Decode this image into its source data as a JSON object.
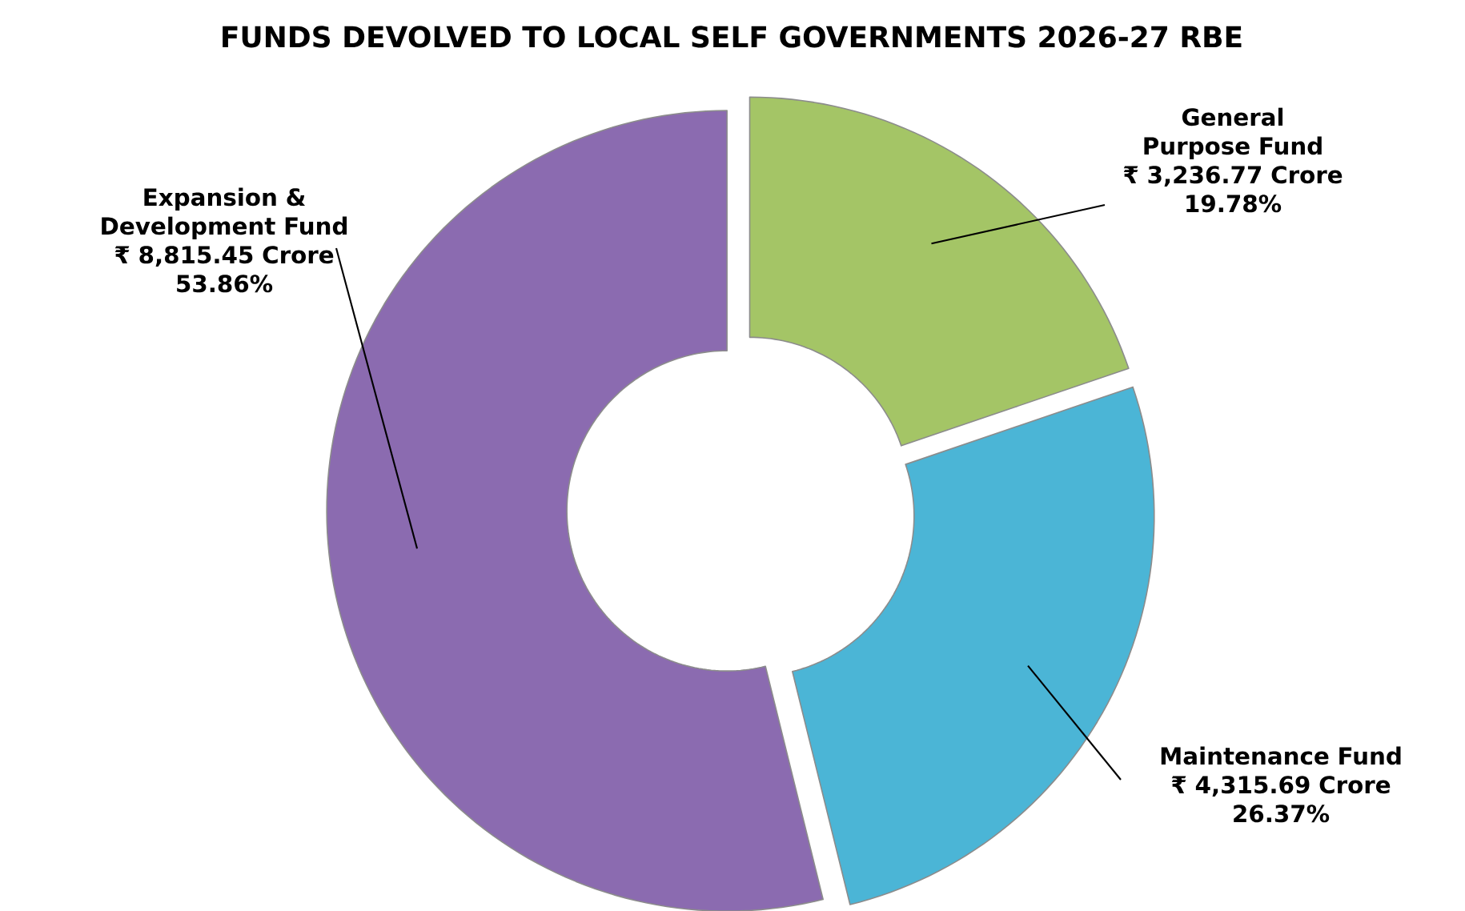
{
  "chart_data": {
    "type": "donut",
    "title": "FUNDS DEVOLVED TO LOCAL SELF GOVERNMENTS 2026-27 RBE",
    "categories": [
      "General Purpose Fund",
      "Maintenance Fund",
      "Expansion & Development Fund"
    ],
    "values": [
      3236.77,
      4315.69,
      8815.45
    ],
    "colors": [
      "#a4c566",
      "#4bb5d6",
      "#8b6bb0"
    ],
    "value_labels": [
      "₹ 3,236.77 Crore",
      "₹ 4,315.69 Crore",
      "₹ 8,815.45 Crore"
    ],
    "annotations": [
      "19.78%",
      "26.37%",
      "53.86%"
    ]
  }
}
